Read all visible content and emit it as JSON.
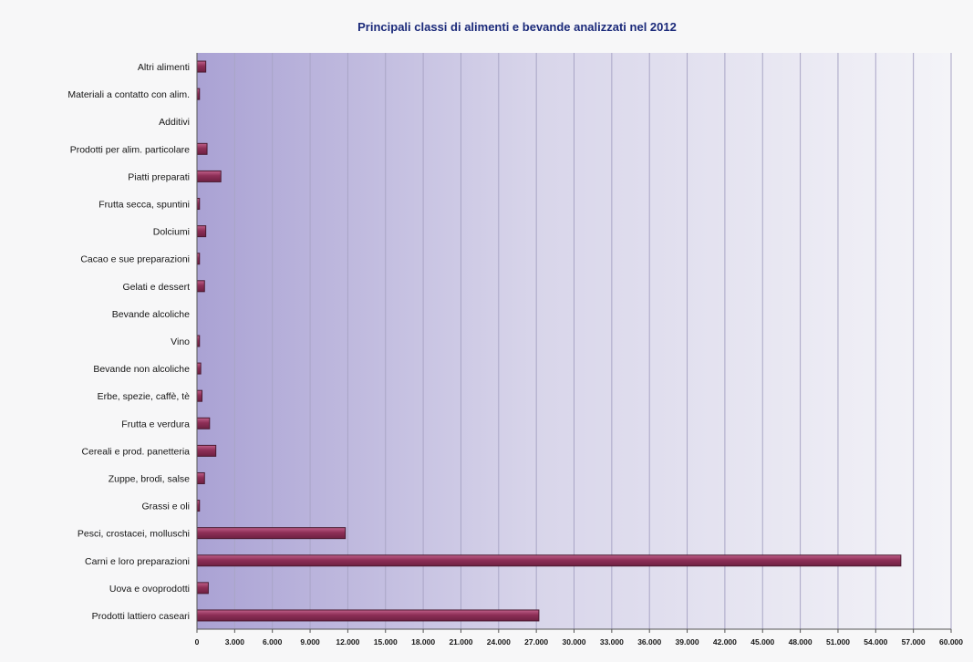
{
  "colors": {
    "bar_fill": "#8e2f57",
    "bar_top": "#c0608a",
    "bar_stroke": "#4a1a30",
    "plot_left": "#aaa2d4",
    "plot_right": "#f4f4f8",
    "grid": "#a9a5c6",
    "title": "#1b2a7a",
    "label": "#151515"
  },
  "chart_data": {
    "type": "bar",
    "orientation": "horizontal",
    "title": "Principali classi di alimenti e bevande analizzati nel 2012",
    "xlabel": "",
    "ylabel": "",
    "xlim": [
      0,
      60000
    ],
    "grid": true,
    "legend": "none",
    "categories": [
      "Altri alimenti",
      "Materiali a contatto con alim.",
      "Additivi",
      "Prodotti per alim. particolare",
      "Piatti preparati",
      "Frutta secca, spuntini",
      "Dolciumi",
      "Cacao e sue preparazioni",
      "Gelati e dessert",
      "Bevande alcoliche",
      "Vino",
      "Bevande non alcoliche",
      "Erbe, spezie, caffè, tè",
      "Frutta e verdura",
      "Cereali e prod. panetteria",
      "Zuppe, brodi, salse",
      "Grassi e oli",
      "Pesci, crostacei, molluschi",
      "Carni e loro preparazioni",
      "Uova e ovoprodotti",
      "Prodotti lattiero caseari"
    ],
    "values": [
      700,
      200,
      0,
      800,
      1900,
      200,
      700,
      200,
      600,
      0,
      200,
      300,
      400,
      1000,
      1500,
      600,
      200,
      11800,
      56000,
      900,
      27200
    ],
    "tick_values": [
      0,
      3000,
      6000,
      9000,
      12000,
      15000,
      18000,
      21000,
      24000,
      27000,
      30000,
      33000,
      36000,
      39000,
      42000,
      45000,
      48000,
      51000,
      54000,
      57000,
      60000
    ],
    "tick_labels": [
      "0",
      "3.000",
      "6.000",
      "9.000",
      "12.000",
      "15.000",
      "18.000",
      "21.000",
      "24.000",
      "27.000",
      "30.000",
      "33.000",
      "36.000",
      "39.000",
      "42.000",
      "45.000",
      "48.000",
      "51.000",
      "54.000",
      "57.000",
      "60.000"
    ]
  }
}
